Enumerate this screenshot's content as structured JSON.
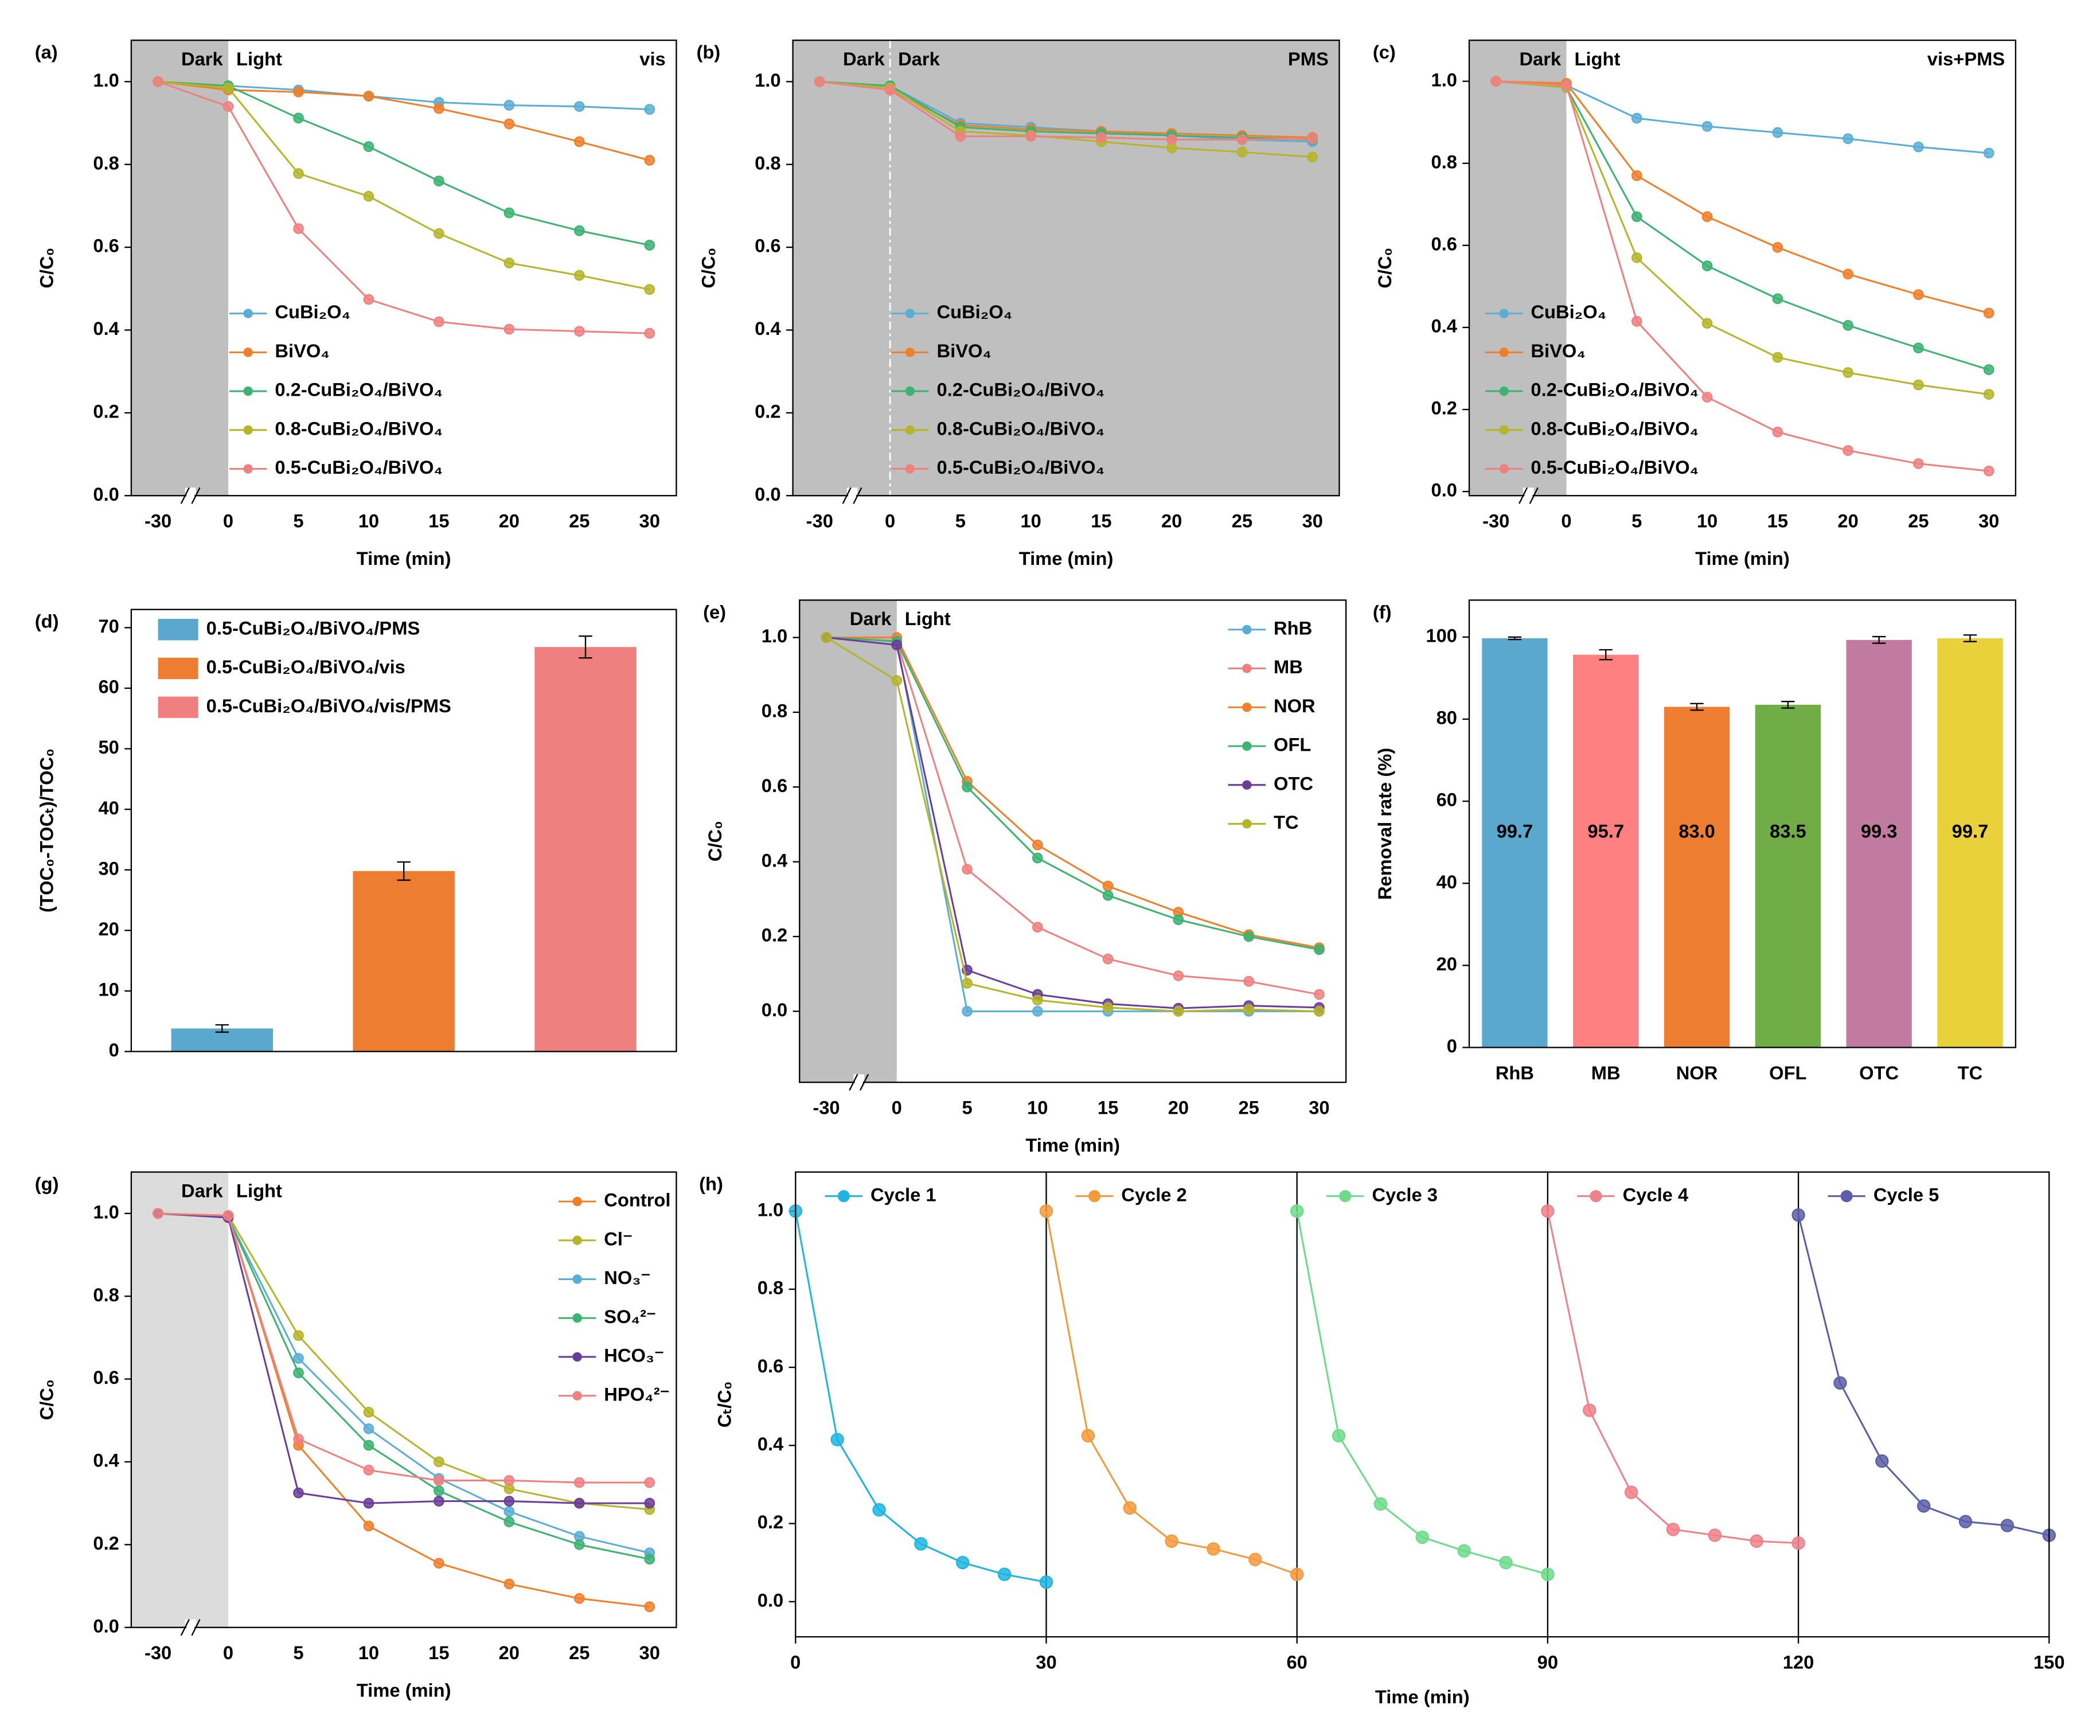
{
  "chart_data": [
    {
      "type": "line",
      "panel": "(a)",
      "xlabel": "Time (min)",
      "ylabel": "C/C₀",
      "categories": [
        "-30",
        "0",
        "5",
        "10",
        "15",
        "20",
        "25",
        "30"
      ],
      "ylim": [
        0,
        1.1
      ],
      "yticks": [
        {
          "value": 0,
          "label": "0.0"
        },
        0.2,
        0.4,
        0.6,
        0.8,
        {
          "value": 1,
          "label": "1.0"
        }
      ],
      "annotations": [
        "Dark",
        "Light",
        "vis"
      ],
      "boundary": "0",
      "shade_full": false,
      "divider_line": false,
      "shade_color": "#bfbfbf",
      "axis_break": true,
      "legend": "lower left",
      "series": [
        {
          "name": "CuBi₂O₄",
          "color": "#5aaed6",
          "values": [
            1.0,
            0.99,
            0.98,
            0.965,
            0.95,
            0.943,
            0.94,
            0.933
          ]
        },
        {
          "name": "BiVO₄",
          "color": "#f07f2a",
          "values": [
            1.0,
            0.98,
            0.975,
            0.965,
            0.935,
            0.898,
            0.855,
            0.81
          ]
        },
        {
          "name": "0.2-CuBi₂O₄/BiVO₄",
          "color": "#3cb371",
          "values": [
            1.0,
            0.99,
            0.912,
            0.843,
            0.76,
            0.683,
            0.64,
            0.605
          ]
        },
        {
          "name": "0.8-CuBi₂O₄/BiVO₄",
          "color": "#b5b52a",
          "values": [
            1.0,
            0.985,
            0.778,
            0.723,
            0.633,
            0.562,
            0.532,
            0.498
          ]
        },
        {
          "name": "0.5-CuBi₂O₄/BiVO₄",
          "color": "#f08080",
          "values": [
            1.0,
            0.94,
            0.645,
            0.474,
            0.42,
            0.402,
            0.397,
            0.392
          ]
        }
      ]
    },
    {
      "type": "line",
      "panel": "(b)",
      "xlabel": "Time (min)",
      "ylabel": "C/C₀",
      "categories": [
        "-30",
        "0",
        "5",
        "10",
        "15",
        "20",
        "25",
        "30"
      ],
      "ylim": [
        0,
        1.1
      ],
      "yticks": [
        {
          "value": 0,
          "label": "0.0"
        },
        0.2,
        0.4,
        0.6,
        0.8,
        {
          "value": 1,
          "label": "1.0"
        }
      ],
      "annotations": [
        "Dark",
        "Dark",
        "PMS"
      ],
      "boundary": "0",
      "shade_full": true,
      "divider_line": true,
      "shade_color": "#bfbfbf",
      "axis_break": true,
      "legend": "lower left",
      "series": [
        {
          "name": "CuBi₂O₄",
          "color": "#5aaed6",
          "values": [
            1.0,
            0.99,
            0.9,
            0.89,
            0.88,
            0.87,
            0.86,
            0.855
          ]
        },
        {
          "name": "BiVO₄",
          "color": "#f07f2a",
          "values": [
            1.0,
            0.98,
            0.895,
            0.885,
            0.88,
            0.875,
            0.87,
            0.865
          ]
        },
        {
          "name": "0.2-CuBi₂O₄/BiVO₄",
          "color": "#3cb371",
          "values": [
            1.0,
            0.99,
            0.89,
            0.88,
            0.875,
            0.87,
            0.865,
            0.86
          ]
        },
        {
          "name": "0.8-CuBi₂O₄/BiVO₄",
          "color": "#b5b52a",
          "values": [
            1.0,
            0.985,
            0.88,
            0.87,
            0.855,
            0.84,
            0.83,
            0.818
          ]
        },
        {
          "name": "0.5-CuBi₂O₄/BiVO₄",
          "color": "#f08080",
          "values": [
            1.0,
            0.98,
            0.868,
            0.868,
            0.865,
            0.86,
            0.86,
            0.862
          ]
        }
      ]
    },
    {
      "type": "line",
      "panel": "(c)",
      "xlabel": "Time (min)",
      "ylabel": "C/C₀",
      "categories": [
        "-30",
        "0",
        "5",
        "10",
        "15",
        "20",
        "25",
        "30"
      ],
      "ylim": [
        -0.01,
        1.1
      ],
      "yticks": [
        {
          "value": 0,
          "label": "0.0"
        },
        0.2,
        0.4,
        0.6,
        0.8,
        {
          "value": 1,
          "label": "1.0"
        }
      ],
      "annotations": [
        "Dark",
        "Light",
        "vis+PMS"
      ],
      "boundary": "0",
      "shade_full": false,
      "divider_line": false,
      "shade_color": "#bfbfbf",
      "axis_break": true,
      "legend": "center left",
      "series": [
        {
          "name": "CuBi₂O₄",
          "color": "#5aaed6",
          "values": [
            1.0,
            0.99,
            0.91,
            0.89,
            0.875,
            0.86,
            0.84,
            0.825
          ]
        },
        {
          "name": "BiVO₄",
          "color": "#f07f2a",
          "values": [
            1.0,
            0.995,
            0.77,
            0.67,
            0.595,
            0.53,
            0.48,
            0.435
          ]
        },
        {
          "name": "0.2-CuBi₂O₄/BiVO₄",
          "color": "#3cb371",
          "values": [
            1.0,
            0.985,
            0.67,
            0.55,
            0.47,
            0.405,
            0.35,
            0.297
          ]
        },
        {
          "name": "0.8-CuBi₂O₄/BiVO₄",
          "color": "#b5b52a",
          "values": [
            1.0,
            0.985,
            0.57,
            0.41,
            0.327,
            0.29,
            0.26,
            0.237
          ]
        },
        {
          "name": "0.5-CuBi₂O₄/BiVO₄",
          "color": "#f08080",
          "values": [
            1.0,
            0.99,
            0.415,
            0.23,
            0.145,
            0.1,
            0.068,
            0.05
          ]
        }
      ]
    },
    {
      "type": "bar",
      "panel": "(d)",
      "ylabel": "(TOC₀-TOCₜ)/TOC₀",
      "categories": [
        null,
        null,
        null
      ],
      "ylim": [
        0,
        73
      ],
      "yticks": [
        0,
        10,
        20,
        30,
        40,
        50,
        60,
        70
      ],
      "legend": "upper left",
      "series": [
        {
          "name": "0.5-CuBi₂O₄/BiVO₄/PMS",
          "color": "#5ba8cf",
          "values": [
            3.8,
            null,
            null
          ],
          "errors": [
            0.6,
            null,
            null
          ]
        },
        {
          "name": "0.5-CuBi₂O₄/BiVO₄/vis",
          "color": "#ed7d31",
          "values": [
            null,
            29.8,
            null
          ],
          "errors": [
            null,
            1.5,
            null
          ]
        },
        {
          "name": "0.5-CuBi₂O₄/BiVO₄/vis/PMS",
          "color": "#f08080",
          "values": [
            null,
            null,
            66.8
          ],
          "errors": [
            null,
            null,
            1.8
          ]
        }
      ]
    },
    {
      "type": "line",
      "panel": "(e)",
      "xlabel": "Time (min)",
      "ylabel": "C/C₀",
      "categories": [
        "-30",
        "0",
        "5",
        "10",
        "15",
        "20",
        "25",
        "30"
      ],
      "ylim": [
        -0.19,
        1.1
      ],
      "yticks": [
        {
          "value": 0,
          "label": "0.0"
        },
        0.2,
        0.4,
        0.6,
        0.8,
        {
          "value": 1,
          "label": "1.0"
        }
      ],
      "annotations": [
        "Dark",
        "Light"
      ],
      "boundary": "0",
      "shade_full": false,
      "divider_line": false,
      "shade_color": "#bfbfbf",
      "axis_break": true,
      "legend": "upper right",
      "series": [
        {
          "name": "RhB",
          "color": "#5aaed6",
          "values": [
            1.0,
            0.99,
            0.0,
            0.0,
            0.0,
            0.0,
            0.0,
            0.0
          ]
        },
        {
          "name": "MB",
          "color": "#f08080",
          "values": [
            1.0,
            0.99,
            0.38,
            0.225,
            0.14,
            0.095,
            0.08,
            0.045
          ]
        },
        {
          "name": "NOR",
          "color": "#f07f2a",
          "values": [
            1.0,
            1.0,
            0.615,
            0.445,
            0.335,
            0.265,
            0.205,
            0.17
          ]
        },
        {
          "name": "OFL",
          "color": "#3cb371",
          "values": [
            1.0,
            0.99,
            0.6,
            0.41,
            0.31,
            0.245,
            0.2,
            0.165
          ]
        },
        {
          "name": "OTC",
          "color": "#6a3d9a",
          "values": [
            1.0,
            0.98,
            0.11,
            0.045,
            0.02,
            0.008,
            0.015,
            0.01
          ]
        },
        {
          "name": "TC",
          "color": "#b5b52a",
          "values": [
            1.0,
            0.885,
            0.075,
            0.03,
            0.01,
            0.0,
            0.005,
            0.0
          ]
        }
      ]
    },
    {
      "type": "bar",
      "panel": "(f)",
      "ylabel": "Removal rate (%)",
      "categories": [
        "RhB",
        "MB",
        "NOR",
        "OFL",
        "OTC",
        "TC"
      ],
      "values": [
        99.7,
        95.7,
        83.0,
        83.5,
        99.3,
        99.7
      ],
      "value_labels": [
        "99.7",
        "95.7",
        "83.0",
        "83.5",
        "99.3",
        "99.7"
      ],
      "errors": [
        0.3,
        1.2,
        0.8,
        0.8,
        0.8,
        0.8
      ],
      "colors": [
        "#5ba8cf",
        "#ff8080",
        "#ed7d31",
        "#70ad47",
        "#c27ba0",
        "#e8d13a"
      ],
      "ylim": [
        0,
        109
      ],
      "yticks": [
        0,
        20,
        40,
        60,
        80,
        100
      ]
    },
    {
      "type": "line",
      "panel": "(g)",
      "xlabel": "Time (min)",
      "ylabel": "C/C₀",
      "categories": [
        "-30",
        "0",
        "5",
        "10",
        "15",
        "20",
        "25",
        "30"
      ],
      "ylim": [
        0,
        1.1
      ],
      "yticks": [
        {
          "value": 0,
          "label": "0.0"
        },
        0.2,
        0.4,
        0.6,
        0.8,
        {
          "value": 1,
          "label": "1.0"
        }
      ],
      "annotations": [
        "Dark",
        "Light"
      ],
      "boundary": "0",
      "shade_full": false,
      "divider_line": false,
      "shade_color": "#dcdcdc",
      "axis_break": true,
      "legend": "upper right",
      "series": [
        {
          "name": "Control",
          "color": "#f07f2a",
          "values": [
            1.0,
            0.995,
            0.44,
            0.245,
            0.155,
            0.105,
            0.07,
            0.05
          ]
        },
        {
          "name": "Cl⁻",
          "color": "#b5b52a",
          "values": [
            1.0,
            0.995,
            0.705,
            0.52,
            0.4,
            0.335,
            0.3,
            0.285
          ]
        },
        {
          "name": "NO₃⁻",
          "color": "#5aaed6",
          "values": [
            1.0,
            0.99,
            0.65,
            0.48,
            0.36,
            0.28,
            0.22,
            0.18
          ]
        },
        {
          "name": "SO₄²⁻",
          "color": "#3cb371",
          "values": [
            1.0,
            0.99,
            0.615,
            0.44,
            0.33,
            0.255,
            0.2,
            0.165
          ]
        },
        {
          "name": "HCO₃⁻",
          "color": "#6a3d9a",
          "values": [
            1.0,
            0.99,
            0.325,
            0.3,
            0.305,
            0.305,
            0.3,
            0.3
          ]
        },
        {
          "name": "HPO₄²⁻",
          "color": "#f08080",
          "values": [
            1.0,
            0.995,
            0.455,
            0.38,
            0.355,
            0.355,
            0.35,
            0.35
          ]
        }
      ]
    },
    {
      "type": "line",
      "panel": "(h)",
      "xlabel": "Time (min)",
      "ylabel": "Cₜ/C₀",
      "xlim": [
        0,
        150
      ],
      "xticks": [
        0,
        30,
        60,
        90,
        120,
        150
      ],
      "segment_lines": true,
      "ylim": [
        -0.09,
        1.1
      ],
      "yticks": [
        {
          "value": 0,
          "label": "0.0"
        },
        0.2,
        0.4,
        0.6,
        0.8,
        {
          "value": 1,
          "label": "1.0"
        }
      ],
      "legend": "top",
      "series": [
        {
          "name": "Cycle 1",
          "color": "#1fb5e0",
          "x": [
            0,
            5,
            10,
            15,
            20,
            25,
            30
          ],
          "values": [
            1.0,
            0.415,
            0.235,
            0.148,
            0.1,
            0.07,
            0.05
          ]
        },
        {
          "name": "Cycle 2",
          "color": "#f39a3c",
          "x": [
            30,
            35,
            40,
            45,
            50,
            55,
            60
          ],
          "values": [
            1.0,
            0.425,
            0.24,
            0.155,
            0.135,
            0.108,
            0.07
          ]
        },
        {
          "name": "Cycle 3",
          "color": "#6cdc8a",
          "x": [
            60,
            65,
            70,
            75,
            80,
            85,
            90
          ],
          "values": [
            1.0,
            0.425,
            0.25,
            0.165,
            0.13,
            0.1,
            0.07
          ]
        },
        {
          "name": "Cycle 4",
          "color": "#f0808a",
          "x": [
            90,
            95,
            100,
            105,
            110,
            115,
            120
          ],
          "values": [
            1.0,
            0.49,
            0.28,
            0.185,
            0.17,
            0.155,
            0.15
          ]
        },
        {
          "name": "Cycle 5",
          "color": "#5a5ea8",
          "x": [
            120,
            125,
            130,
            135,
            140,
            145,
            150
          ],
          "values": [
            0.99,
            0.56,
            0.36,
            0.245,
            0.205,
            0.195,
            0.17
          ]
        }
      ]
    }
  ]
}
